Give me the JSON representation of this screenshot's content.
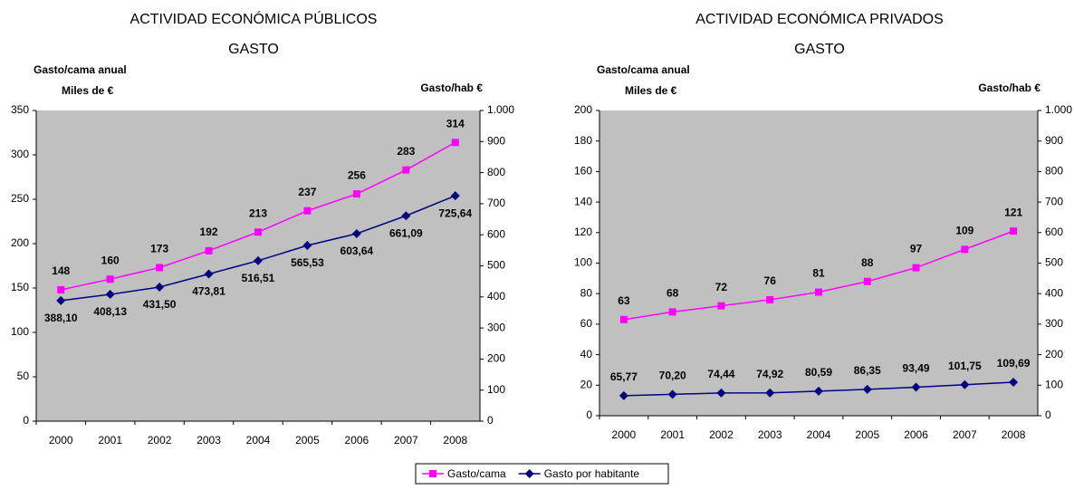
{
  "chart_data": [
    {
      "type": "line",
      "title": "ACTIVIDAD ECONÓMICA PÚBLICOS",
      "subtitle": "GASTO",
      "ylabel": "Gasto/cama anual",
      "ylabel2": "Miles de €",
      "y2label": "Gasto/hab €",
      "categories": [
        "2000",
        "2001",
        "2002",
        "2003",
        "2004",
        "2005",
        "2006",
        "2007",
        "2008"
      ],
      "ylim": [
        0,
        350
      ],
      "yticks": [
        0,
        50,
        100,
        150,
        200,
        250,
        300,
        350
      ],
      "y2lim": [
        0,
        1000
      ],
      "y2ticks": [
        0,
        100,
        200,
        300,
        400,
        500,
        600,
        700,
        800,
        900,
        {
          "value": 1000,
          "label": "1.000"
        }
      ],
      "background": "#c0c0c0",
      "series": [
        {
          "name": "Gasto/cama",
          "color": "#ff00ff",
          "marker": "square",
          "values": [
            148,
            160,
            173,
            192,
            213,
            237,
            256,
            283,
            314
          ]
        },
        {
          "name": "Gasto por habitante",
          "color": "#000080",
          "marker": "diamond",
          "axis": "y2",
          "values": [
            388.1,
            408.13,
            431.5,
            473.81,
            516.51,
            565.53,
            603.64,
            661.09,
            725.64
          ],
          "value_labels": [
            "388,10",
            "408,13",
            "431,50",
            "473,81",
            "516,51",
            "565,53",
            "603,64",
            "661,09",
            "725,64"
          ]
        }
      ]
    },
    {
      "type": "line",
      "title": "ACTIVIDAD ECONÓMICA PRIVADOS",
      "subtitle": "GASTO",
      "ylabel": "Gasto/cama anual",
      "ylabel2": "Miles de €",
      "y2label": "Gasto/hab €",
      "categories": [
        "2000",
        "2001",
        "2002",
        "2003",
        "2004",
        "2005",
        "2006",
        "2007",
        "2008"
      ],
      "ylim": [
        0,
        200
      ],
      "yticks": [
        0,
        20,
        40,
        60,
        80,
        100,
        120,
        140,
        160,
        180,
        200
      ],
      "y2lim": [
        0,
        1000
      ],
      "y2ticks": [
        0,
        100,
        200,
        300,
        400,
        500,
        600,
        700,
        800,
        900,
        {
          "value": 1000,
          "label": "1.000"
        }
      ],
      "background": "#c0c0c0",
      "series": [
        {
          "name": "Gasto/cama",
          "color": "#ff00ff",
          "marker": "square",
          "values": [
            63,
            68,
            72,
            76,
            81,
            88,
            97,
            109,
            121
          ]
        },
        {
          "name": "Gasto por habitante",
          "color": "#000080",
          "marker": "diamond",
          "axis": "y2",
          "values": [
            65.77,
            70.2,
            74.44,
            74.92,
            80.59,
            86.35,
            93.49,
            101.75,
            109.69
          ],
          "value_labels": [
            "65,77",
            "70,20",
            "74,44",
            "74,92",
            "80,59",
            "86,35",
            "93,49",
            "101,75",
            "109,69"
          ]
        }
      ]
    }
  ]
}
